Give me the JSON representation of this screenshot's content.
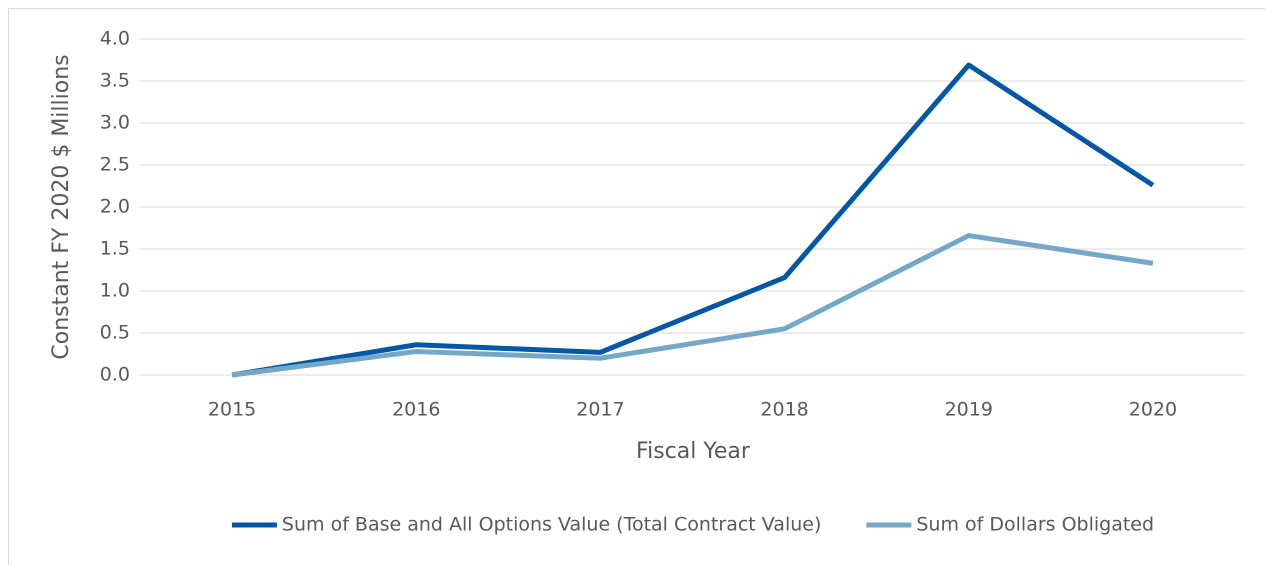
{
  "chart_data": {
    "type": "line",
    "categories": [
      "2015",
      "2016",
      "2017",
      "2018",
      "2019",
      "2020"
    ],
    "series": [
      {
        "name": "Sum of Base and All Options Value (Total Contract Value)",
        "color": "#0057a6",
        "values": [
          0,
          0.36,
          0.27,
          1.16,
          3.69,
          2.26
        ]
      },
      {
        "name": "Sum of Dollars Obligated",
        "color": "#75a7c9",
        "values": [
          0,
          0.28,
          0.2,
          0.55,
          1.66,
          1.33
        ]
      }
    ],
    "xlabel": "Fiscal Year",
    "ylabel": "Constant FY 2020 $ Millions",
    "ylim": [
      0,
      4
    ],
    "yticks": [
      {
        "value": 0,
        "label": "0.0"
      },
      0.5,
      {
        "value": 1,
        "label": "1.0"
      },
      1.5,
      {
        "value": 2,
        "label": "2.0"
      },
      2.5,
      {
        "value": 3,
        "label": "3.0"
      },
      3.5,
      {
        "value": 4,
        "label": "4.0"
      }
    ],
    "grid": true,
    "legend": "bottom"
  }
}
